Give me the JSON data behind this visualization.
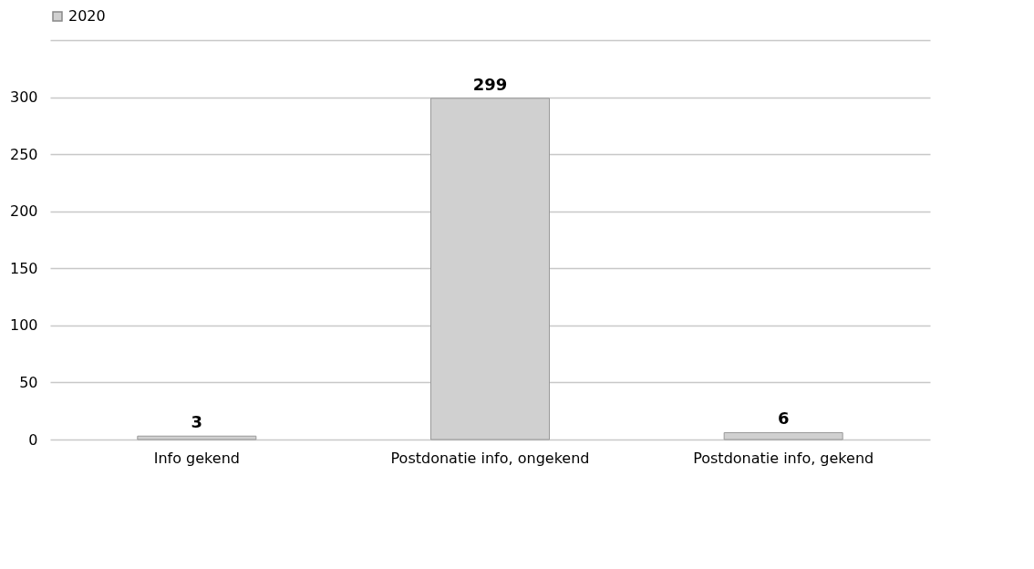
{
  "chart_data": {
    "type": "bar",
    "categories": [
      "Info gekend",
      "Postdonatie info, ongekend",
      "Postdonatie info, gekend"
    ],
    "series": [
      {
        "name": "2020",
        "color": "#d0d0d0",
        "values": [
          3,
          299,
          6
        ]
      }
    ],
    "ylim": [
      0,
      350
    ],
    "yticks": [
      0,
      50,
      100,
      150,
      200,
      250,
      300,
      {
        "value": 350,
        "label": null
      }
    ],
    "grid": "y",
    "legend": "top",
    "data_labels": true
  }
}
